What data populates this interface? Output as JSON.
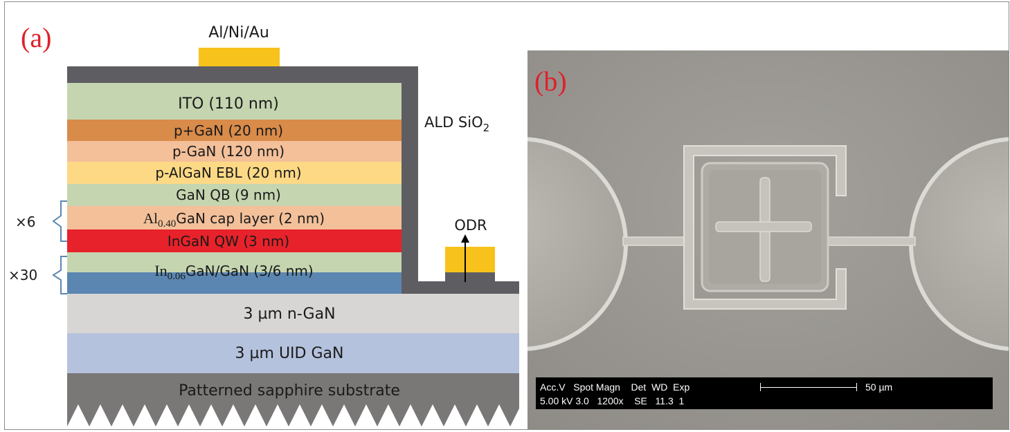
{
  "panel_a": {
    "label": "(a)",
    "contact_label": "Al/Ni/Au",
    "passivation_label": "ALD SiO",
    "passivation_sub": "2",
    "odr_label": "ODR",
    "repeat_6": "×6",
    "repeat_30": "×30",
    "layers": {
      "ito": "ITO (110 nm)",
      "pp_gan": "p+GaN (20 nm)",
      "p_gan": "p-GaN (120 nm)",
      "ebl": "p-AlGaN EBL (20 nm)",
      "qb": "GaN QB (9 nm)",
      "cap_pre": "Al",
      "cap_sub": "0.40",
      "cap_post": "GaN cap layer (2 nm)",
      "qw": "InGaN QW (3 nm)",
      "sl_pre": "In",
      "sl_sub": "0.06",
      "sl_post": "GaN/GaN (3/6 nm)",
      "n_gan": "3 µm n-GaN",
      "uid_gan": "3 µm UID GaN",
      "substrate": "Patterned sapphire substrate"
    },
    "colors": {
      "ito": "#c5d5b0",
      "pp_gan": "#d98b4a",
      "p_gan": "#f3c09a",
      "ebl": "#fdd985",
      "qb": "#c5d5b0",
      "cap": "#f3c09a",
      "qw": "#e8222a",
      "sl_top": "#c5d5b0",
      "sl_bottom": "#5b86b2",
      "n_gan": "#d8d6d4",
      "uid_gan": "#b5c2de",
      "substrate": "#7a7777",
      "sio2": "#5e5e62",
      "metal": "#f8c21c",
      "bracket": "#5b86b2"
    }
  },
  "panel_b": {
    "label": "(b)",
    "info_row1": "Acc.V   Spot Magn    Det  WD  Exp",
    "info_row2": "5.00 kV 3.0   1200x    SE   11.3  1",
    "scale_label": "50 µm"
  }
}
